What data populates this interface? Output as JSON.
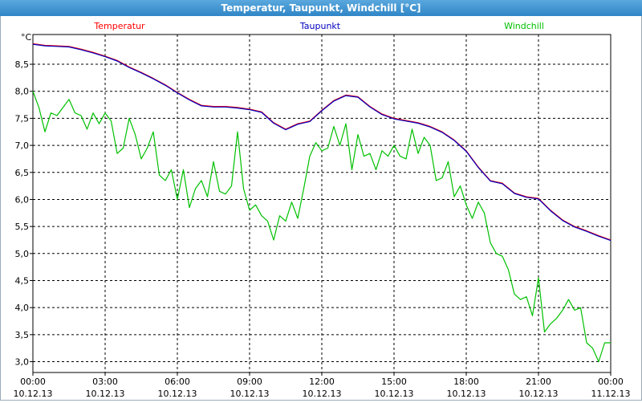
{
  "window": {
    "title": "Temperatur, Taupunkt, Windchill [°C]"
  },
  "chart_data": {
    "type": "line",
    "title": "Temperatur, Taupunkt, Windchill [°C]",
    "ylabel": "°C",
    "ylim": [
      2.8,
      9.05
    ],
    "xlim": [
      0,
      24
    ],
    "yticks": [
      "3,0",
      "3,5",
      "4,0",
      "4,5",
      "5,0",
      "5,5",
      "6,0",
      "6,5",
      "7,0",
      "7,5",
      "8,0",
      "8,5"
    ],
    "yticks_values": [
      3.0,
      3.5,
      4.0,
      4.5,
      5.0,
      5.5,
      6.0,
      6.5,
      7.0,
      7.5,
      8.0,
      8.5
    ],
    "xticks_values": [
      0,
      3,
      6,
      9,
      12,
      15,
      18,
      21,
      24
    ],
    "xticks_time": [
      "00:00",
      "03:00",
      "06:00",
      "09:00",
      "12:00",
      "15:00",
      "18:00",
      "21:00",
      "00:00"
    ],
    "xticks_date": [
      "10.12.13",
      "10.12.13",
      "10.12.13",
      "10.12.13",
      "10.12.13",
      "10.12.13",
      "10.12.13",
      "10.12.13",
      "11.12.13"
    ],
    "grid": true,
    "legend_position": "top",
    "series": [
      {
        "name": "Temperatur",
        "color": "#ff0000",
        "x": [
          0,
          0.5,
          1,
          1.5,
          2,
          2.5,
          3,
          3.5,
          4,
          4.5,
          5,
          5.5,
          6,
          6.5,
          7,
          7.5,
          8,
          8.5,
          9,
          9.5,
          10,
          10.5,
          11,
          11.5,
          12,
          12.5,
          13,
          13.5,
          14,
          14.5,
          15,
          15.5,
          16,
          16.5,
          17,
          17.5,
          18,
          18.5,
          19,
          19.5,
          20,
          20.5,
          21,
          21.5,
          22,
          22.5,
          23,
          23.5,
          24
        ],
        "values": [
          8.88,
          8.85,
          8.84,
          8.83,
          8.78,
          8.72,
          8.65,
          8.57,
          8.45,
          8.35,
          8.24,
          8.12,
          7.98,
          7.85,
          7.74,
          7.72,
          7.72,
          7.7,
          7.67,
          7.62,
          7.42,
          7.3,
          7.4,
          7.45,
          7.65,
          7.83,
          7.93,
          7.9,
          7.72,
          7.58,
          7.5,
          7.46,
          7.42,
          7.35,
          7.25,
          7.1,
          6.9,
          6.6,
          6.35,
          6.3,
          6.12,
          6.05,
          6.02,
          5.8,
          5.62,
          5.5,
          5.42,
          5.33,
          5.25
        ]
      },
      {
        "name": "Taupunkt",
        "color": "#0000c0",
        "x": [
          0,
          0.5,
          1,
          1.5,
          2,
          2.5,
          3,
          3.5,
          4,
          4.5,
          5,
          5.5,
          6,
          6.5,
          7,
          7.5,
          8,
          8.5,
          9,
          9.5,
          10,
          10.5,
          11,
          11.5,
          12,
          12.5,
          13,
          13.5,
          14,
          14.5,
          15,
          15.5,
          16,
          16.5,
          17,
          17.5,
          18,
          18.5,
          19,
          19.5,
          20,
          20.5,
          21,
          21.5,
          22,
          22.5,
          23,
          23.5,
          24
        ],
        "values": [
          8.87,
          8.84,
          8.83,
          8.82,
          8.77,
          8.71,
          8.64,
          8.56,
          8.44,
          8.34,
          8.23,
          8.11,
          7.97,
          7.84,
          7.73,
          7.71,
          7.71,
          7.69,
          7.66,
          7.61,
          7.41,
          7.29,
          7.39,
          7.44,
          7.64,
          7.82,
          7.92,
          7.89,
          7.71,
          7.57,
          7.49,
          7.45,
          7.41,
          7.34,
          7.24,
          7.09,
          6.89,
          6.59,
          6.34,
          6.29,
          6.11,
          6.04,
          6.01,
          5.79,
          5.61,
          5.49,
          5.41,
          5.32,
          5.24
        ]
      },
      {
        "name": "Windchill",
        "color": "#00c000",
        "x": [
          0,
          0.25,
          0.5,
          0.75,
          1,
          1.25,
          1.5,
          1.75,
          2,
          2.25,
          2.5,
          2.75,
          3,
          3.25,
          3.5,
          3.75,
          4,
          4.25,
          4.5,
          4.75,
          5,
          5.25,
          5.5,
          5.75,
          6,
          6.25,
          6.5,
          6.75,
          7,
          7.25,
          7.5,
          7.75,
          8,
          8.25,
          8.5,
          8.75,
          9,
          9.25,
          9.5,
          9.75,
          10,
          10.25,
          10.5,
          10.75,
          11,
          11.25,
          11.5,
          11.75,
          12,
          12.25,
          12.5,
          12.75,
          13,
          13.25,
          13.5,
          13.75,
          14,
          14.25,
          14.5,
          14.75,
          15,
          15.25,
          15.5,
          15.75,
          16,
          16.25,
          16.5,
          16.75,
          17,
          17.25,
          17.5,
          17.75,
          18,
          18.25,
          18.5,
          18.75,
          19,
          19.25,
          19.5,
          19.75,
          20,
          20.25,
          20.5,
          20.75,
          21,
          21.25,
          21.5,
          21.75,
          22,
          22.25,
          22.5,
          22.75,
          23,
          23.25,
          23.5,
          23.75,
          24
        ],
        "values": [
          8.0,
          7.7,
          7.25,
          7.6,
          7.55,
          7.7,
          7.85,
          7.6,
          7.55,
          7.3,
          7.6,
          7.4,
          7.6,
          7.45,
          6.85,
          6.95,
          7.5,
          7.2,
          6.75,
          6.95,
          7.25,
          6.45,
          6.35,
          6.55,
          6.0,
          6.55,
          5.85,
          6.2,
          6.35,
          6.05,
          6.7,
          6.15,
          6.1,
          6.25,
          7.25,
          6.2,
          5.8,
          5.9,
          5.7,
          5.6,
          5.25,
          5.7,
          5.6,
          5.95,
          5.65,
          6.2,
          6.8,
          7.05,
          6.9,
          6.95,
          7.35,
          7.0,
          7.4,
          6.55,
          7.2,
          6.8,
          6.85,
          6.55,
          6.9,
          6.8,
          7.0,
          6.8,
          6.75,
          7.3,
          6.85,
          7.15,
          7.0,
          6.35,
          6.4,
          6.7,
          6.05,
          6.25,
          5.9,
          5.65,
          5.95,
          5.75,
          5.2,
          5.0,
          4.95,
          4.7,
          4.25,
          4.15,
          4.2,
          3.85,
          4.55,
          3.55,
          3.7,
          3.8,
          3.95,
          4.15,
          3.95,
          4.0,
          3.35,
          3.25,
          3.0,
          3.35,
          3.35
        ]
      }
    ]
  }
}
